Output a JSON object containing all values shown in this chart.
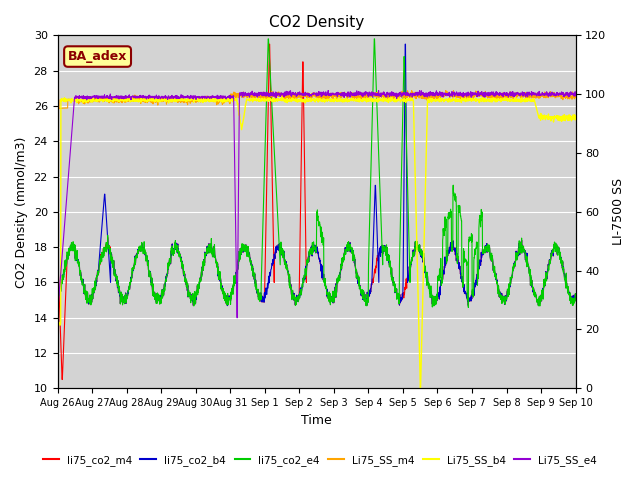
{
  "title": "CO2 Density",
  "xlabel": "Time",
  "ylabel_left": "CO2 Density (mmol/m3)",
  "ylabel_right": "LI-7500 SS",
  "ylim_left": [
    10,
    30
  ],
  "ylim_right": [
    0,
    120
  ],
  "annotation_text": "BA_adex",
  "annotation_color": "#8B0000",
  "annotation_bg": "#FFFF99",
  "bg_color": "#D3D3D3",
  "line_colors": {
    "li75_co2_m4": "#FF0000",
    "li75_co2_b4": "#0000CD",
    "li75_co2_e4": "#00CC00",
    "Li75_SS_m4": "#FFA500",
    "Li75_SS_b4": "#FFFF00",
    "Li75_SS_e4": "#9400D3"
  },
  "x_tick_labels": [
    "Aug 26",
    "Aug 27",
    "Aug 28",
    "Aug 29",
    "Aug 30",
    "Aug 31",
    "Sep 1",
    "Sep 2",
    "Sep 3",
    "Sep 4",
    "Sep 5",
    "Sep 6",
    "Sep 7",
    "Sep 8",
    "Sep 9",
    "Sep 10"
  ],
  "left_yticks": [
    10,
    12,
    14,
    16,
    18,
    20,
    22,
    24,
    26,
    28,
    30
  ],
  "right_yticks": [
    0,
    20,
    40,
    60,
    80,
    100,
    120
  ]
}
